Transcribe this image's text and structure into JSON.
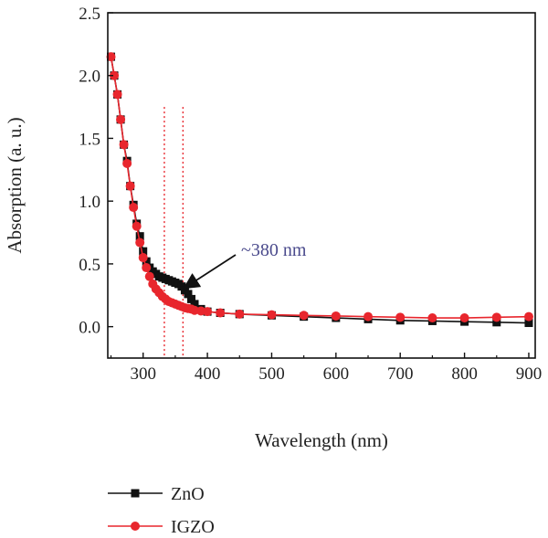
{
  "chart_data": {
    "type": "scatter",
    "xlabel": "Wavelength (nm)",
    "ylabel": "Absorption (a. u.)",
    "xlim": [
      245,
      910
    ],
    "ylim": [
      -0.25,
      2.5
    ],
    "x_ticks": [
      "300",
      "400",
      "500",
      "600",
      "700",
      "800",
      "900"
    ],
    "x_tick_values": [
      300,
      400,
      500,
      600,
      700,
      800,
      900
    ],
    "y_ticks": [
      "0.0",
      "0.5",
      "1.0",
      "1.5",
      "2.0",
      "2.5"
    ],
    "y_tick_values": [
      0.0,
      0.5,
      1.0,
      1.5,
      2.0,
      2.5
    ],
    "reference_lines_x": [
      333,
      362
    ],
    "annotation": {
      "text": "~380 nm",
      "point": [
        362,
        0.3
      ],
      "color": "#4a4a8c"
    },
    "legend_placement": "bottom-left (below plot)",
    "series": [
      {
        "name": "ZnO",
        "color": "#111111",
        "marker": "square",
        "x": [
          250,
          255,
          260,
          265,
          270,
          275,
          280,
          285,
          290,
          295,
          300,
          305,
          310,
          315,
          320,
          325,
          330,
          335,
          340,
          345,
          350,
          355,
          360,
          365,
          370,
          375,
          380,
          390,
          400,
          420,
          450,
          500,
          550,
          600,
          650,
          700,
          750,
          800,
          850,
          900
        ],
        "y": [
          2.15,
          2.0,
          1.85,
          1.65,
          1.45,
          1.32,
          1.12,
          0.97,
          0.82,
          0.72,
          0.6,
          0.52,
          0.47,
          0.44,
          0.42,
          0.4,
          0.39,
          0.38,
          0.37,
          0.36,
          0.35,
          0.34,
          0.32,
          0.29,
          0.26,
          0.22,
          0.18,
          0.14,
          0.12,
          0.11,
          0.1,
          0.09,
          0.08,
          0.07,
          0.06,
          0.05,
          0.045,
          0.04,
          0.035,
          0.03
        ]
      },
      {
        "name": "IGZO",
        "color": "#e8262d",
        "marker": "circle",
        "x": [
          250,
          255,
          260,
          265,
          270,
          275,
          280,
          285,
          290,
          295,
          300,
          305,
          310,
          315,
          320,
          325,
          330,
          335,
          340,
          345,
          350,
          355,
          360,
          365,
          370,
          375,
          380,
          390,
          400,
          420,
          450,
          500,
          550,
          600,
          650,
          700,
          750,
          800,
          850,
          900
        ],
        "y": [
          2.15,
          2.0,
          1.85,
          1.65,
          1.45,
          1.3,
          1.12,
          0.95,
          0.8,
          0.67,
          0.55,
          0.47,
          0.4,
          0.34,
          0.3,
          0.27,
          0.24,
          0.22,
          0.2,
          0.19,
          0.18,
          0.17,
          0.16,
          0.15,
          0.145,
          0.14,
          0.13,
          0.125,
          0.12,
          0.11,
          0.1,
          0.095,
          0.09,
          0.085,
          0.08,
          0.075,
          0.07,
          0.07,
          0.075,
          0.08
        ]
      }
    ]
  }
}
